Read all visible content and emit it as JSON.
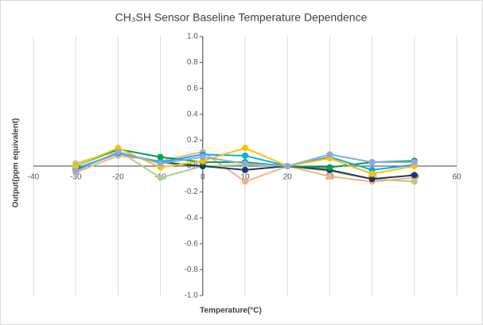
{
  "chart_data": {
    "type": "line",
    "title": "CH₃SH Sensor Baseline Temperature Dependence",
    "x_label": "Temperature(°C)",
    "y_label": "Output(ppm equivalent)",
    "x": [
      -30,
      -20,
      -10,
      0,
      10,
      20,
      30,
      40,
      50
    ],
    "series": [
      {
        "color": "#a9d18e",
        "values": [
          0.02,
          0.12,
          -0.09,
          0.0,
          0.01,
          0,
          -0.04,
          -0.1,
          -0.12
        ]
      },
      {
        "color": "#f4b183",
        "values": [
          -0.05,
          0.08,
          0.04,
          0.11,
          -0.12,
          0,
          -0.08,
          -0.12,
          -0.09
        ]
      },
      {
        "color": "#1f3864",
        "values": [
          -0.03,
          0.1,
          0.03,
          0.0,
          -0.03,
          0,
          -0.03,
          -0.1,
          -0.07
        ]
      },
      {
        "color": "#00a050",
        "values": [
          0.0,
          0.13,
          0.07,
          0.03,
          0.03,
          0,
          -0.01,
          0.03,
          0.04
        ]
      },
      {
        "color": "#00b0f0",
        "values": [
          -0.02,
          0.1,
          0.03,
          0.09,
          0.08,
          0,
          0.07,
          -0.03,
          0.01
        ]
      },
      {
        "color": "#ffc000",
        "values": [
          0.0,
          0.14,
          -0.01,
          0.04,
          0.14,
          0,
          0.06,
          -0.06,
          0.0
        ]
      },
      {
        "color": "#8faadc",
        "values": [
          -0.04,
          0.11,
          0.02,
          0.07,
          0.02,
          0,
          0.09,
          0.03,
          0.03
        ]
      }
    ],
    "xlim": [
      -40,
      60
    ],
    "xticks": [
      -40,
      -30,
      -20,
      -10,
      0,
      10,
      20,
      30,
      40,
      50,
      60
    ],
    "ylim": [
      -1,
      1
    ],
    "yticks": [
      {
        "value": -1,
        "label": "-1.0"
      },
      -0.8,
      -0.6,
      -0.4,
      -0.2,
      {
        "value": 0,
        "label": "0.0"
      },
      0.2,
      0.4,
      0.6,
      0.8,
      {
        "value": 1,
        "label": "1.0"
      }
    ],
    "grid": true
  }
}
